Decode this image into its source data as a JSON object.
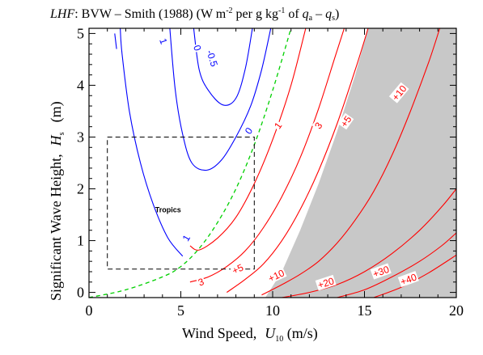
{
  "chart_data": {
    "type": "contour",
    "title_prefix": "LHF",
    "title_rest": ": BVW – Smith (1988)  (W m",
    "title_exp1": "-2",
    "title_mid": " per g kg",
    "title_exp2": "-1",
    "title_of": " of ",
    "title_qa": "q",
    "title_qa_sub": "a",
    "title_minus": " – ",
    "title_qs": "q",
    "title_qs_sub": "s",
    "title_close": ")",
    "xlabel": "Wind Speed,",
    "xlabel_var": "U",
    "xlabel_sub": "10",
    "xlabel_unit": " (m/s)",
    "ylabel": "Significant Wave Height,",
    "ylabel_var": "H",
    "ylabel_sub": "s",
    "ylabel_unit": "(m)",
    "xlim": [
      0,
      20
    ],
    "ylim": [
      -0.1,
      5.1
    ],
    "xticks": [
      0,
      5,
      10,
      15,
      20
    ],
    "yticks": [
      0,
      1,
      2,
      3,
      4,
      5
    ],
    "shaded_region_boundary": [
      [
        9.6,
        -0.1
      ],
      [
        10.5,
        0.4
      ],
      [
        11.5,
        1.2
      ],
      [
        12.5,
        2.1
      ],
      [
        13.5,
        3.1
      ],
      [
        14.5,
        4.2
      ],
      [
        15.2,
        5.1
      ],
      [
        20,
        5.1
      ],
      [
        20,
        -0.1
      ]
    ],
    "dashed_curve": {
      "color": "#00d000",
      "points": [
        [
          0.0,
          -0.1
        ],
        [
          2.0,
          0.05
        ],
        [
          4.0,
          0.3
        ],
        [
          5.0,
          0.5
        ],
        [
          6.0,
          0.85
        ],
        [
          7.0,
          1.35
        ],
        [
          8.0,
          2.0
        ],
        [
          9.0,
          2.85
        ],
        [
          10.0,
          3.9
        ],
        [
          11.0,
          5.1
        ]
      ]
    },
    "box": {
      "x": [
        1.0,
        9.0
      ],
      "y": [
        0.45,
        3.0
      ],
      "label": "Tropics"
    },
    "contours": [
      {
        "level": "-0.5",
        "color": "#0000ff",
        "points": [
          [
            5.7,
            5.1
          ],
          [
            6.0,
            4.3
          ],
          [
            6.5,
            3.9
          ],
          [
            7.3,
            3.62
          ],
          [
            8.0,
            3.75
          ],
          [
            8.5,
            4.3
          ],
          [
            8.9,
            5.1
          ]
        ]
      },
      {
        "level": "0",
        "color": "#0000ff",
        "points": [
          [
            4.4,
            5.1
          ],
          [
            4.7,
            3.9
          ],
          [
            5.1,
            3.05
          ],
          [
            5.6,
            2.5
          ],
          [
            6.4,
            2.36
          ],
          [
            7.2,
            2.55
          ],
          [
            8.0,
            3.0
          ],
          [
            8.8,
            3.6
          ],
          [
            9.4,
            4.3
          ],
          [
            9.9,
            5.1
          ]
        ]
      },
      {
        "level": "1",
        "color": "#0000ff",
        "points": [
          [
            1.7,
            5.1
          ],
          [
            1.8,
            4.6
          ],
          [
            2.2,
            3.5
          ],
          [
            2.8,
            2.5
          ],
          [
            3.5,
            1.7
          ],
          [
            4.3,
            1.05
          ],
          [
            5.1,
            0.7
          ]
        ]
      },
      {
        "level": "1",
        "color": "#0000ff",
        "points": [
          [
            1.5,
            4.7
          ],
          [
            1.4,
            5.0
          ]
        ]
      },
      {
        "level": "1",
        "color": "#ff0000",
        "points": [
          [
            5.5,
            0.9
          ],
          [
            6.0,
            0.82
          ],
          [
            7.0,
            1.05
          ],
          [
            8.0,
            1.45
          ],
          [
            9.0,
            2.1
          ],
          [
            10.0,
            2.95
          ],
          [
            11.0,
            4.0
          ],
          [
            11.8,
            5.1
          ]
        ]
      },
      {
        "level": "3",
        "color": "#ff0000",
        "points": [
          [
            5.5,
            0.2
          ],
          [
            6.5,
            0.3
          ],
          [
            7.5,
            0.5
          ],
          [
            8.5,
            0.8
          ],
          [
            9.5,
            1.25
          ],
          [
            10.5,
            1.85
          ],
          [
            11.5,
            2.6
          ],
          [
            12.5,
            3.55
          ],
          [
            13.4,
            4.55
          ],
          [
            13.9,
            5.1
          ]
        ]
      },
      {
        "level": "+5",
        "color": "#ff0000",
        "points": [
          [
            7.5,
            0.0
          ],
          [
            8.5,
            0.25
          ],
          [
            9.5,
            0.55
          ],
          [
            10.5,
            1.0
          ],
          [
            11.5,
            1.6
          ],
          [
            12.5,
            2.35
          ],
          [
            13.5,
            3.25
          ],
          [
            14.5,
            4.3
          ],
          [
            15.2,
            5.1
          ]
        ]
      },
      {
        "level": "+10",
        "color": "#ff0000",
        "points": [
          [
            9.4,
            -0.05
          ],
          [
            10.5,
            0.15
          ],
          [
            11.5,
            0.35
          ],
          [
            12.5,
            0.6
          ],
          [
            13.5,
            0.95
          ],
          [
            14.5,
            1.4
          ],
          [
            15.5,
            1.95
          ],
          [
            16.5,
            2.65
          ],
          [
            17.5,
            3.5
          ],
          [
            18.5,
            4.45
          ],
          [
            19.1,
            5.1
          ]
        ]
      },
      {
        "level": "+20",
        "color": "#ff0000",
        "points": [
          [
            10.5,
            -0.1
          ],
          [
            12.0,
            0.0
          ],
          [
            13.5,
            0.15
          ],
          [
            15.0,
            0.4
          ],
          [
            16.5,
            0.75
          ],
          [
            18.0,
            1.2
          ],
          [
            19.2,
            1.65
          ],
          [
            20.0,
            2.0
          ]
        ]
      },
      {
        "level": "+30",
        "color": "#ff0000",
        "points": [
          [
            13.5,
            -0.1
          ],
          [
            15.0,
            0.05
          ],
          [
            16.5,
            0.3
          ],
          [
            18.0,
            0.6
          ],
          [
            19.2,
            0.9
          ],
          [
            20.0,
            1.15
          ]
        ]
      },
      {
        "level": "+40",
        "color": "#ff0000",
        "points": [
          [
            15.5,
            -0.1
          ],
          [
            17.0,
            0.1
          ],
          [
            18.5,
            0.38
          ],
          [
            20.0,
            0.72
          ]
        ]
      }
    ],
    "contour_labels": [
      {
        "text": "-0.5",
        "x": 6.7,
        "y": 4.52,
        "color": "#0000ff",
        "angle": 72
      },
      {
        "text": "0",
        "x": 5.9,
        "y": 4.72,
        "color": "#0000ff",
        "angle": 72
      },
      {
        "text": "1",
        "x": 4.05,
        "y": 4.85,
        "color": "#0000ff",
        "angle": 70
      },
      {
        "text": "0",
        "x": 8.7,
        "y": 3.12,
        "color": "#0000ff",
        "angle": -55
      },
      {
        "text": "1",
        "x": 5.3,
        "y": 1.05,
        "color": "#0000ff",
        "angle": -60
      },
      {
        "text": "1",
        "x": 10.3,
        "y": 3.22,
        "color": "#ff0000",
        "angle": -55
      },
      {
        "text": "3",
        "x": 12.5,
        "y": 3.22,
        "color": "#ff0000",
        "angle": -55
      },
      {
        "text": "+5",
        "x": 14.0,
        "y": 3.3,
        "color": "#ff0000",
        "angle": -55
      },
      {
        "text": "+10",
        "x": 16.9,
        "y": 3.85,
        "color": "#ff0000",
        "angle": -50
      },
      {
        "text": "3",
        "x": 6.1,
        "y": 0.2,
        "color": "#ff0000",
        "angle": -20
      },
      {
        "text": "+5",
        "x": 8.1,
        "y": 0.45,
        "color": "#ff0000",
        "angle": -25
      },
      {
        "text": "+10",
        "x": 10.2,
        "y": 0.32,
        "color": "#ff0000",
        "angle": -25
      },
      {
        "text": "+20",
        "x": 12.9,
        "y": 0.18,
        "color": "#ff0000",
        "angle": -18
      },
      {
        "text": "+30",
        "x": 15.9,
        "y": 0.4,
        "color": "#ff0000",
        "angle": -20
      },
      {
        "text": "+40",
        "x": 17.4,
        "y": 0.25,
        "color": "#ff0000",
        "angle": -20
      }
    ]
  }
}
